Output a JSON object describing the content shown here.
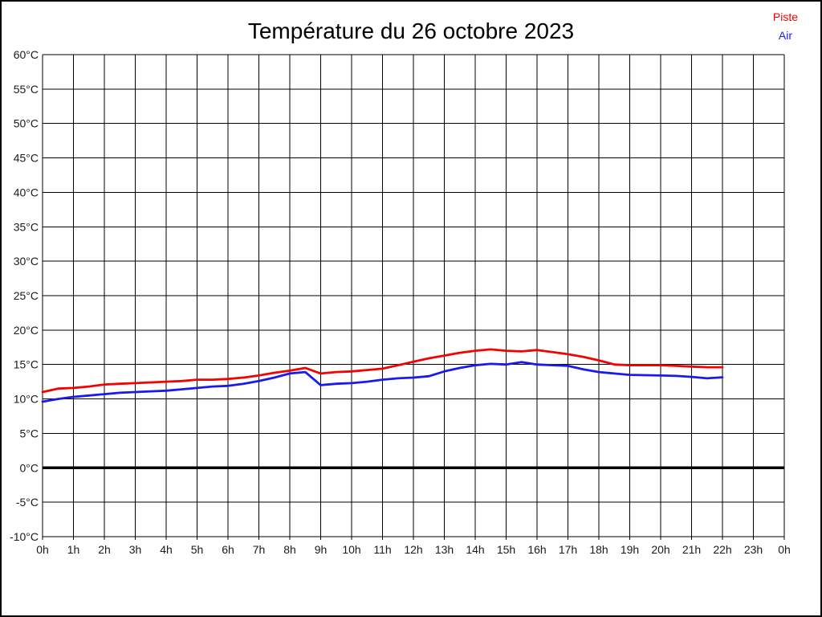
{
  "page": {
    "background": "#ffffff",
    "border_color": "#000000"
  },
  "title": "Température du 26 octobre 2023",
  "legend": {
    "items": [
      {
        "label": "Piste",
        "color": "#f40202"
      },
      {
        "label": "Air",
        "color": "#1a1aee"
      }
    ]
  },
  "chart_data": {
    "type": "line",
    "title": "Température du 26 octobre 2023",
    "xlabel": "",
    "ylabel": "",
    "xlim": [
      0,
      24
    ],
    "ylim": [
      -10,
      60
    ],
    "grid": true,
    "grid_color": "#000000",
    "axis_color": "#000000",
    "label_color": "#1a1a1a",
    "legend_position": "top-right",
    "zero_line": {
      "value": 0,
      "width": 3.5,
      "color": "#000000"
    },
    "x_tick_labels": [
      "0h",
      "1h",
      "2h",
      "3h",
      "4h",
      "5h",
      "6h",
      "7h",
      "8h",
      "9h",
      "10h",
      "11h",
      "12h",
      "13h",
      "14h",
      "15h",
      "16h",
      "17h",
      "18h",
      "19h",
      "20h",
      "21h",
      "22h",
      "23h",
      "0h"
    ],
    "y_tick_values": [
      60,
      55,
      50,
      45,
      40,
      35,
      30,
      25,
      20,
      15,
      10,
      5,
      0,
      -5,
      -10
    ],
    "y_tick_labels": [
      "60°C",
      "55°C",
      "50°C",
      "45°C",
      "40°C",
      "35°C",
      "30°C",
      "25°C",
      "20°C",
      "15°C",
      "10°C",
      "5°C",
      "0°C",
      "-5°C",
      "-10°C"
    ],
    "x": [
      0,
      0.5,
      1,
      1.5,
      2,
      2.5,
      3,
      3.5,
      4,
      4.5,
      5,
      5.5,
      6,
      6.5,
      7,
      7.5,
      8,
      8.5,
      9,
      9.5,
      10,
      10.5,
      11,
      11.5,
      12,
      12.5,
      13,
      13.5,
      14,
      14.5,
      15,
      15.5,
      16,
      16.5,
      17,
      17.5,
      18,
      18.5,
      19,
      19.5,
      20,
      20.5,
      21,
      21.5,
      22
    ],
    "series": [
      {
        "name": "Piste",
        "color": "#f40202",
        "values": [
          11.0,
          11.5,
          11.6,
          11.8,
          12.1,
          12.2,
          12.3,
          12.4,
          12.5,
          12.6,
          12.8,
          12.8,
          12.9,
          13.1,
          13.4,
          13.8,
          14.1,
          14.5,
          13.7,
          13.9,
          14.0,
          14.2,
          14.4,
          14.9,
          15.4,
          15.9,
          16.3,
          16.7,
          17.0,
          17.2,
          17.0,
          16.9,
          17.1,
          16.8,
          16.5,
          16.1,
          15.6,
          15.0,
          14.9,
          14.9,
          14.9,
          14.8,
          14.7,
          14.6,
          14.6
        ]
      },
      {
        "name": "Air",
        "color": "#1a1aee",
        "values": [
          9.6,
          10.0,
          10.3,
          10.5,
          10.7,
          10.9,
          11.0,
          11.1,
          11.2,
          11.4,
          11.6,
          11.8,
          11.9,
          12.2,
          12.6,
          13.1,
          13.7,
          13.9,
          12.0,
          12.2,
          12.3,
          12.5,
          12.8,
          13.0,
          13.1,
          13.3,
          14.0,
          14.5,
          14.9,
          15.1,
          15.0,
          15.35,
          15.0,
          14.9,
          14.8,
          14.3,
          13.9,
          13.7,
          13.5,
          13.45,
          13.4,
          13.35,
          13.2,
          13.0,
          13.15
        ]
      }
    ]
  }
}
